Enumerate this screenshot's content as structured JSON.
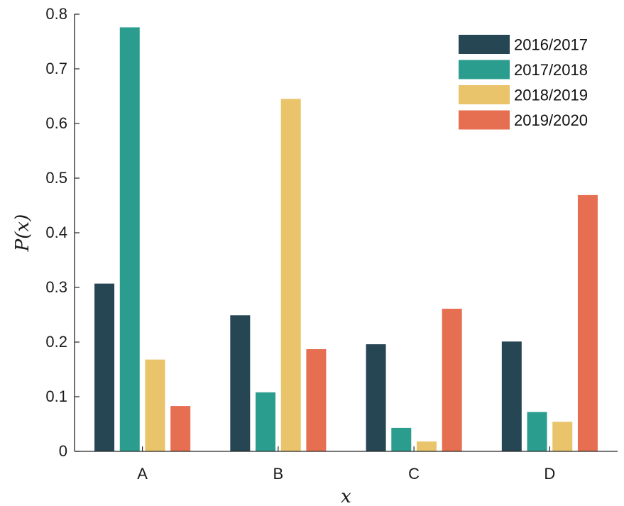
{
  "chart_data": {
    "type": "bar",
    "title": "",
    "xlabel": "x",
    "ylabel": "P(x)",
    "categories": [
      "A",
      "B",
      "C",
      "D"
    ],
    "ylim": [
      0,
      0.8
    ],
    "yticks": [
      "0",
      "0.1",
      "0.2",
      "0.3",
      "0.4",
      "0.5",
      "0.6",
      "0.7",
      "0.8"
    ],
    "grid": false,
    "legend_position": "top-right",
    "series": [
      {
        "name": "2016/2017",
        "color": "#264653",
        "values": [
          0.307,
          0.249,
          0.196,
          0.201
        ]
      },
      {
        "name": "2017/2018",
        "color": "#2a9d8f",
        "values": [
          0.776,
          0.108,
          0.043,
          0.072
        ]
      },
      {
        "name": "2018/2019",
        "color": "#e9c46a",
        "values": [
          0.168,
          0.645,
          0.018,
          0.054
        ]
      },
      {
        "name": "2019/2020",
        "color": "#e76f51",
        "values": [
          0.083,
          0.187,
          0.261,
          0.469
        ]
      }
    ]
  }
}
